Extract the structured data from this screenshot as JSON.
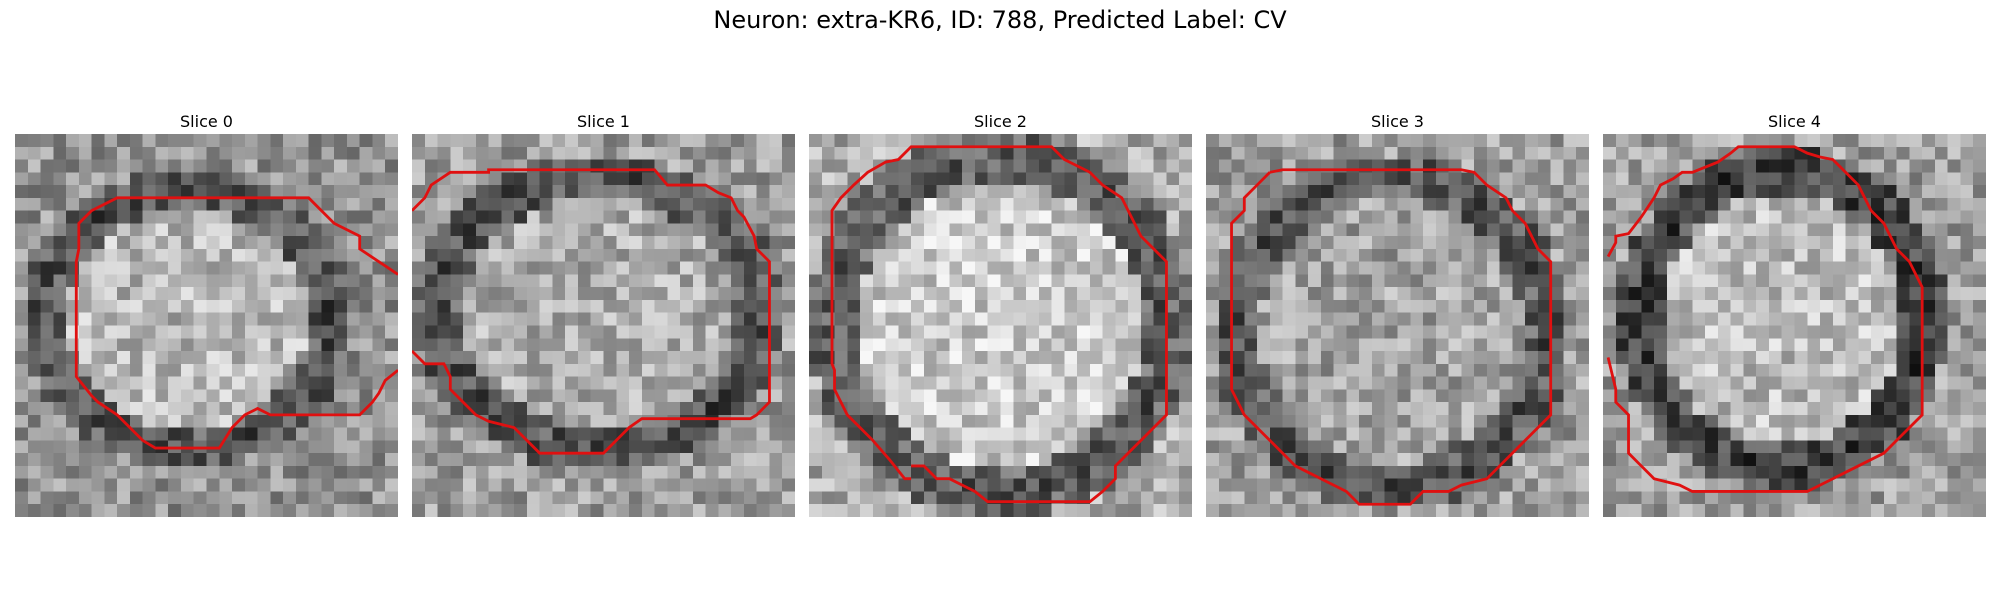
{
  "title": "Neuron: extra-KR6, ID: 788, Predicted Label: CV",
  "contour_color": "#e01010",
  "slices": [
    {
      "label": "Slice 0"
    },
    {
      "label": "Slice 1"
    },
    {
      "label": "Slice 2"
    },
    {
      "label": "Slice 3"
    },
    {
      "label": "Slice 4"
    }
  ]
}
